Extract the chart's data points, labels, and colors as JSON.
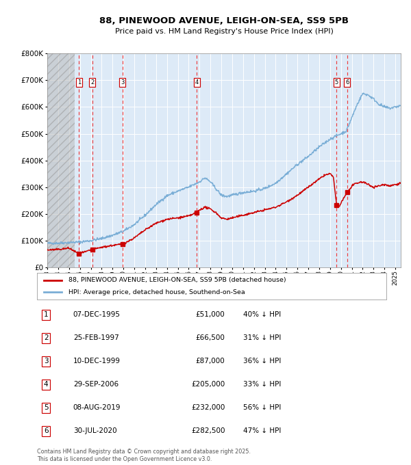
{
  "title_line1": "88, PINEWOOD AVENUE, LEIGH-ON-SEA, SS9 5PB",
  "title_line2": "Price paid vs. HM Land Registry's House Price Index (HPI)",
  "hpi_legend": "HPI: Average price, detached house, Southend-on-Sea",
  "price_legend": "88, PINEWOOD AVENUE, LEIGH-ON-SEA, SS9 5PB (detached house)",
  "footer_line1": "Contains HM Land Registry data © Crown copyright and database right 2025.",
  "footer_line2": "This data is licensed under the Open Government Licence v3.0.",
  "transactions": [
    {
      "num": 1,
      "date": "07-DEC-1995",
      "year": 1995.92,
      "price": 51000,
      "pct": "40%",
      "dir": "↓"
    },
    {
      "num": 2,
      "date": "25-FEB-1997",
      "year": 1997.15,
      "price": 66500,
      "pct": "31%",
      "dir": "↓"
    },
    {
      "num": 3,
      "date": "10-DEC-1999",
      "year": 1999.92,
      "price": 87000,
      "pct": "36%",
      "dir": "↓"
    },
    {
      "num": 4,
      "date": "29-SEP-2006",
      "year": 2006.75,
      "price": 205000,
      "pct": "33%",
      "dir": "↓"
    },
    {
      "num": 5,
      "date": "08-AUG-2019",
      "year": 2019.6,
      "price": 232000,
      "pct": "56%",
      "dir": "↓"
    },
    {
      "num": 6,
      "date": "30-JUL-2020",
      "year": 2020.58,
      "price": 282500,
      "pct": "47%",
      "dir": "↓"
    }
  ],
  "hpi_color": "#7aaed6",
  "price_color": "#cc0000",
  "dashed_color": "#ee3333",
  "marker_color": "#cc0000",
  "bg_chart": "#ddeaf7",
  "grid_color": "#ffffff",
  "ylim": [
    0,
    800000
  ],
  "xlim_start": 1993.0,
  "xlim_end": 2025.5,
  "hatch_end": 1995.5
}
